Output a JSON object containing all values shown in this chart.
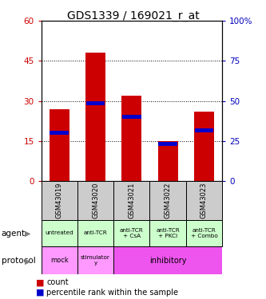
{
  "title": "GDS1339 / 169021_r_at",
  "samples": [
    "GSM43019",
    "GSM43020",
    "GSM43021",
    "GSM43022",
    "GSM43023"
  ],
  "count_values": [
    27,
    48,
    32,
    15,
    26
  ],
  "percentile_values": [
    18,
    29,
    24,
    14,
    19
  ],
  "left_ylim": [
    0,
    60
  ],
  "right_ylim": [
    0,
    100
  ],
  "left_yticks": [
    0,
    15,
    30,
    45,
    60
  ],
  "right_yticks": [
    0,
    25,
    50,
    75,
    100
  ],
  "left_yticklabels": [
    "0",
    "15",
    "30",
    "45",
    "60"
  ],
  "right_yticklabels": [
    "0",
    "25",
    "50",
    "75",
    "100%"
  ],
  "bar_color_red": "#cc0000",
  "bar_color_blue": "#0000cc",
  "bar_width": 0.55,
  "agent_labels": [
    "untreated",
    "anti-TCR",
    "anti-TCR\n+ CsA",
    "anti-TCR\n+ PKCi",
    "anti-TCR\n+ Combo"
  ],
  "agent_color": "#ccffcc",
  "protocol_color_mock": "#ff99ff",
  "protocol_color_stim": "#ff99ff",
  "protocol_color_inhib": "#ee55ee",
  "sample_bg_color": "#cccccc",
  "legend_count_color": "#cc0000",
  "legend_pct_color": "#0000cc",
  "title_fontsize": 10,
  "tick_fontsize": 7.5,
  "left_axis_color": "#cc0000",
  "right_axis_color": "#0000bb",
  "grid_yticks": [
    15,
    30,
    45
  ]
}
